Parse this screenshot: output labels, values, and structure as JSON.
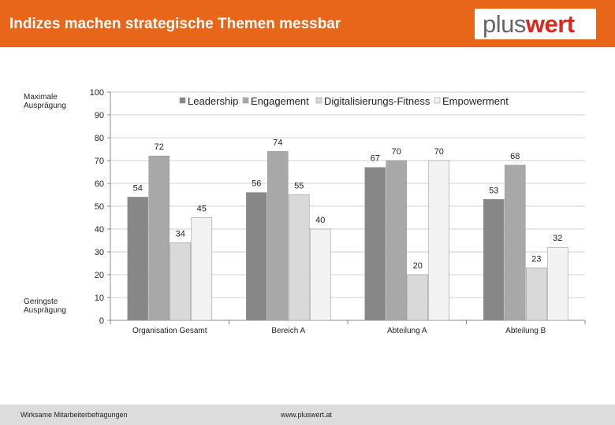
{
  "header": {
    "title": "Indizes machen strategische Themen messbar",
    "logo_plus": "plus",
    "logo_wert": "wert"
  },
  "side_labels": {
    "top": [
      "Maximale",
      "Ausprägung"
    ],
    "bottom": [
      "Geringste",
      "Ausprägung"
    ]
  },
  "footer": {
    "left": "Wirksame Mitarbeiterbefragungen",
    "right": "www.pluswert.at"
  },
  "colors": {
    "accent": "#e8661a",
    "logo_red": "#e2231a",
    "footer_bg": "#dcdcdc"
  },
  "chart_data": {
    "type": "bar",
    "categories": [
      "Organisation Gesamt",
      "Bereich A",
      "Abteilung A",
      "Abteilung B"
    ],
    "series": [
      {
        "name": "Leadership",
        "values": [
          54,
          56,
          67,
          53
        ],
        "color": "#878787"
      },
      {
        "name": "Engagement",
        "values": [
          72,
          74,
          70,
          68
        ],
        "color": "#a8a8a8"
      },
      {
        "name": "Digitalisierungs-Fitness",
        "values": [
          34,
          55,
          20,
          23
        ],
        "color": "#d9d9d9"
      },
      {
        "name": "Empowerment",
        "values": [
          45,
          40,
          70,
          32
        ],
        "color": "#f2f2f2"
      }
    ],
    "ylim": [
      0,
      100
    ],
    "yticks": [
      0,
      10,
      20,
      30,
      40,
      50,
      60,
      70,
      80,
      90,
      100
    ],
    "grid": true,
    "legend": "top-center",
    "data_labels": true
  }
}
